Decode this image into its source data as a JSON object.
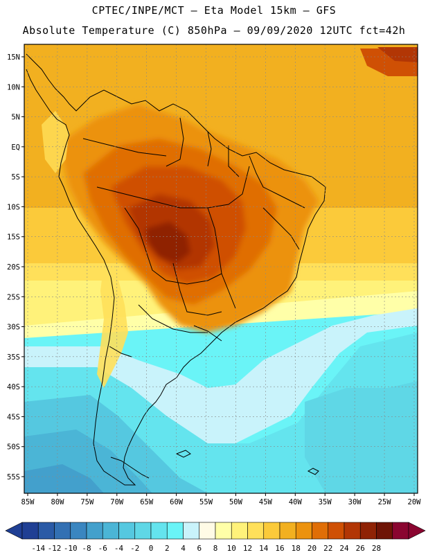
{
  "header": {
    "line1": "CPTEC/INPE/MCT –  Eta Model 15km – GFS",
    "line2": "Absolute Temperature (C) 850hPa – 09/09/2020 12UTC fct=42h"
  },
  "map": {
    "lat_labels": [
      "15N",
      "10N",
      "5N",
      "EQ",
      "5S",
      "10S",
      "15S",
      "20S",
      "25S",
      "30S",
      "35S",
      "40S",
      "45S",
      "50S",
      "55S"
    ],
    "lon_labels": [
      "85W",
      "80W",
      "75W",
      "70W",
      "65W",
      "60W",
      "55W",
      "50W",
      "45W",
      "40W",
      "35W",
      "30W",
      "25W",
      "20W"
    ],
    "lat_range": [
      15,
      -55
    ],
    "lon_range": [
      -85,
      -20
    ],
    "field": "Absolute Temperature (C) 850hPa",
    "warmest_region": "central Brazil / Bolivia",
    "coldest_region": "southern Patagonia and South Atlantic"
  },
  "colorbar": {
    "labels": [
      "-14",
      "-12",
      "-10",
      "-8",
      "-6",
      "-4",
      "-2",
      "0",
      "2",
      "4",
      "6",
      "8",
      "10",
      "12",
      "14",
      "16",
      "18",
      "20",
      "22",
      "24",
      "26",
      "28"
    ],
    "colors": [
      "#1f3f94",
      "#2a5aa6",
      "#3370b3",
      "#3a86c0",
      "#43a0cc",
      "#4bb5d6",
      "#55c8e0",
      "#5fd7e6",
      "#64e4ee",
      "#6af4f7",
      "#c9f3fb",
      "#fffbe6",
      "#ffffa8",
      "#fff27a",
      "#ffe05a",
      "#fbca3a",
      "#f2b020",
      "#ec920e",
      "#e06e06",
      "#cf5004",
      "#b23605",
      "#8f2305",
      "#6e1406",
      "#8a0530"
    ],
    "low_arrow_color": "#1f3f94",
    "high_arrow_color": "#8a0530"
  }
}
